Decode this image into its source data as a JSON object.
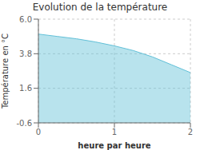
{
  "chart_data": {
    "type": "area",
    "title": "Evolution de la température",
    "xlabel": "heure par heure",
    "ylabel": "Température en °C",
    "x": [
      0,
      0.25,
      0.5,
      0.75,
      1.0,
      1.25,
      1.5,
      1.75,
      2.0
    ],
    "values": [
      5.05,
      4.9,
      4.75,
      4.55,
      4.3,
      4.0,
      3.6,
      3.1,
      2.6
    ],
    "xlim": [
      0,
      2
    ],
    "ylim": [
      -0.6,
      6.0
    ],
    "xticks": [
      0,
      1,
      2
    ],
    "yticks": [
      -0.6,
      1.6,
      3.8,
      {
        "value": 6.0,
        "label": "6.0"
      }
    ],
    "color": "#62c0d8",
    "grid": true
  }
}
